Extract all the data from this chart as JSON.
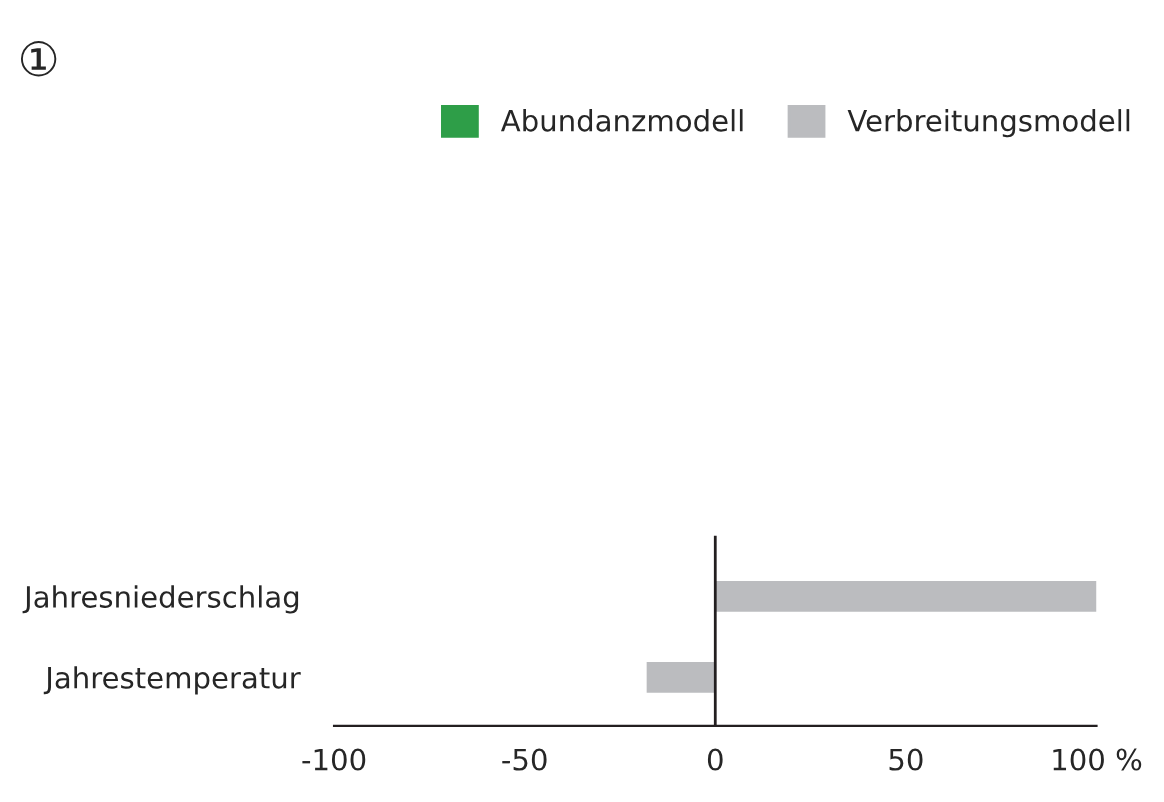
{
  "chart_data": {
    "type": "bar",
    "orientation": "horizontal",
    "title": "①",
    "categories": [
      "Jahresniederschlag",
      "Jahrestemperatur"
    ],
    "series": [
      {
        "name": "Abundanzmodell",
        "color": "#2e9e48",
        "values": [
          null,
          null
        ]
      },
      {
        "name": "Verbreitungsmodell",
        "color": "#bbbcbf",
        "values": [
          100,
          -18
        ]
      }
    ],
    "xlim": [
      -100,
      100
    ],
    "xticks": [
      -100,
      -50,
      0,
      50,
      {
        "value": 100,
        "label": "100 %"
      }
    ],
    "ref_lines": [
      {
        "axis": "x",
        "value": 0,
        "color": "#231f20"
      }
    ],
    "legend": "top right",
    "grid": false
  }
}
